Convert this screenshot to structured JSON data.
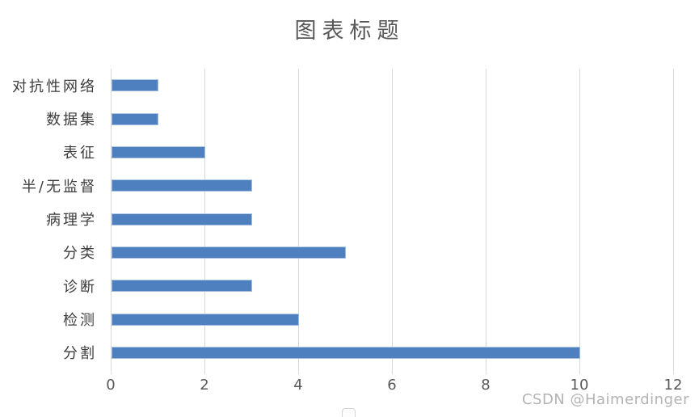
{
  "chart": {
    "title": "图表标题"
  },
  "chart_data": {
    "type": "bar",
    "orientation": "horizontal",
    "title": "图表标题",
    "order": "top-to-bottom",
    "categories": [
      "对抗性网络",
      "数据集",
      "表征",
      "半/无监督",
      "病理学",
      "分类",
      "诊断",
      "检测",
      "分割"
    ],
    "values": [
      1,
      1,
      2,
      3,
      3,
      5,
      3,
      4,
      10
    ],
    "xlabel": "",
    "ylabel": "",
    "xlim": [
      0,
      12
    ],
    "x_ticks": [
      0,
      2,
      4,
      6,
      8,
      10,
      12
    ],
    "grid": "vertical-only",
    "legend": "none",
    "colors": {
      "bar_fill": "#4e7fbe",
      "bar_border": "#9fbcdf",
      "gridline": "#d9d9d9",
      "title_text": "#595959",
      "category_text": "#3d3d3d",
      "tick_text": "#595959"
    }
  },
  "watermark": {
    "text": "CSDN @Haimerdinger",
    "color": "#b3b3b3"
  }
}
